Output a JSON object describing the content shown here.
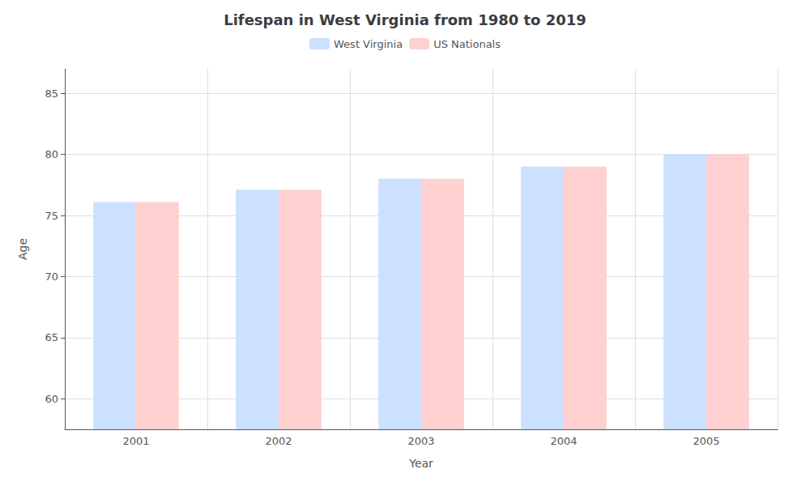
{
  "chart_data": {
    "type": "bar",
    "title": "Lifespan in West Virginia from 1980 to 2019",
    "x_label": "Year",
    "y_label": "Age",
    "categories": [
      "2001",
      "2002",
      "2003",
      "2004",
      "2005"
    ],
    "series": [
      {
        "name": "West Virginia",
        "color": "#cce0ff",
        "values": [
          76.1,
          77.1,
          78.0,
          79.0,
          80.0
        ]
      },
      {
        "name": "US Nationals",
        "color": "#ffd0d0",
        "values": [
          76.1,
          77.1,
          78.0,
          79.0,
          80.0
        ]
      }
    ],
    "ylim": [
      57.5,
      87
    ],
    "yticks": [
      60,
      65,
      70,
      75,
      80,
      85
    ],
    "grid": true,
    "legend": "top"
  }
}
